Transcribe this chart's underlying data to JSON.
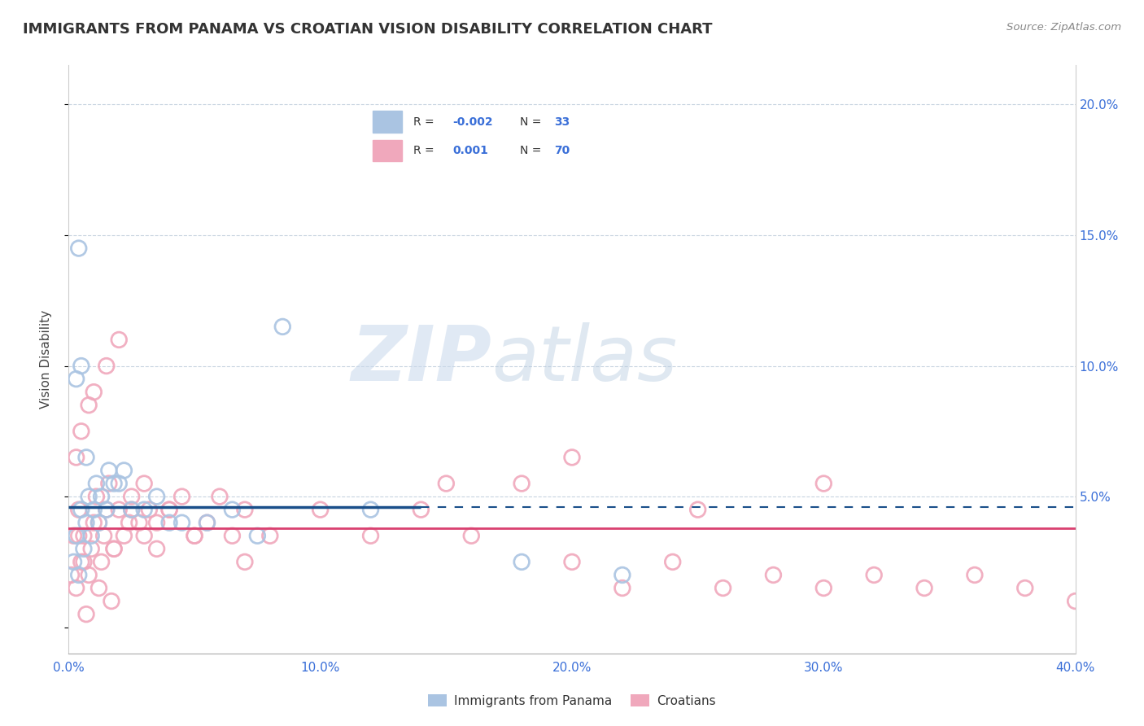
{
  "title": "IMMIGRANTS FROM PANAMA VS CROATIAN VISION DISABILITY CORRELATION CHART",
  "source": "Source: ZipAtlas.com",
  "ylabel": "Vision Disability",
  "xlim": [
    0.0,
    40.0
  ],
  "ylim": [
    -1.0,
    21.5
  ],
  "xticks": [
    0.0,
    10.0,
    20.0,
    30.0,
    40.0
  ],
  "yticks": [
    0.0,
    5.0,
    10.0,
    15.0,
    20.0
  ],
  "xtick_labels": [
    "0.0%",
    "10.0%",
    "20.0%",
    "30.0%",
    "40.0%"
  ],
  "ytick_labels_right": [
    "",
    "5.0%",
    "10.0%",
    "15.0%",
    "20.0%"
  ],
  "blue_R": "-0.002",
  "blue_N": "33",
  "pink_R": "0.001",
  "pink_N": "70",
  "blue_line_y": 4.6,
  "pink_line_y": 3.8,
  "blue_line_solid_end": 14.0,
  "blue_color": "#aac4e2",
  "pink_color": "#f0a8bc",
  "blue_line_color": "#1a4f8a",
  "pink_line_color": "#d94070",
  "background_color": "#ffffff",
  "grid_color": "#c8d4e0",
  "watermark_color": "#d0dce8",
  "R_N_color": "#3a6fd8",
  "label_color": "#555555",
  "blue_scatter_x": [
    0.2,
    0.3,
    0.4,
    0.5,
    0.6,
    0.7,
    0.8,
    0.9,
    1.0,
    1.1,
    1.2,
    1.3,
    1.5,
    1.6,
    2.0,
    2.5,
    3.5,
    4.0,
    5.5,
    6.5,
    7.5,
    8.5,
    0.3,
    0.5,
    0.7,
    1.8,
    2.2,
    3.0,
    4.5,
    12.0,
    18.0,
    22.0,
    0.4
  ],
  "blue_scatter_y": [
    2.5,
    3.5,
    2.0,
    4.5,
    3.0,
    4.0,
    5.0,
    3.5,
    4.5,
    5.5,
    4.0,
    5.0,
    4.5,
    6.0,
    5.5,
    4.5,
    5.0,
    4.0,
    4.0,
    4.5,
    3.5,
    11.5,
    9.5,
    10.0,
    6.5,
    5.5,
    6.0,
    4.5,
    4.0,
    4.5,
    2.5,
    2.0,
    14.5
  ],
  "pink_scatter_x": [
    0.1,
    0.2,
    0.3,
    0.4,
    0.5,
    0.6,
    0.7,
    0.8,
    0.9,
    1.0,
    1.1,
    1.2,
    1.3,
    1.4,
    1.5,
    1.6,
    1.7,
    1.8,
    2.0,
    2.2,
    2.5,
    2.8,
    3.0,
    3.2,
    3.5,
    4.0,
    4.5,
    5.0,
    5.5,
    6.0,
    6.5,
    7.0,
    0.3,
    0.5,
    0.8,
    1.0,
    1.5,
    2.0,
    2.5,
    3.0,
    4.0,
    5.0,
    7.0,
    8.0,
    10.0,
    12.0,
    14.0,
    16.0,
    18.0,
    20.0,
    22.0,
    24.0,
    26.0,
    28.0,
    30.0,
    32.0,
    34.0,
    36.0,
    38.0,
    40.0,
    15.0,
    20.0,
    25.0,
    30.0,
    0.4,
    0.6,
    1.2,
    1.8,
    2.4,
    3.5
  ],
  "pink_scatter_y": [
    2.0,
    3.5,
    1.5,
    4.5,
    2.5,
    3.5,
    0.5,
    2.0,
    3.0,
    4.0,
    5.0,
    1.5,
    2.5,
    3.5,
    4.5,
    5.5,
    1.0,
    3.0,
    4.5,
    3.5,
    5.0,
    4.0,
    5.5,
    4.5,
    4.0,
    4.5,
    5.0,
    3.5,
    4.0,
    5.0,
    3.5,
    4.5,
    6.5,
    7.5,
    8.5,
    9.0,
    10.0,
    11.0,
    4.5,
    3.5,
    4.5,
    3.5,
    2.5,
    3.5,
    4.5,
    3.5,
    4.5,
    3.5,
    5.5,
    2.5,
    1.5,
    2.5,
    1.5,
    2.0,
    1.5,
    2.0,
    1.5,
    2.0,
    1.5,
    1.0,
    5.5,
    6.5,
    4.5,
    5.5,
    3.5,
    2.5,
    4.0,
    3.0,
    4.0,
    3.0
  ]
}
